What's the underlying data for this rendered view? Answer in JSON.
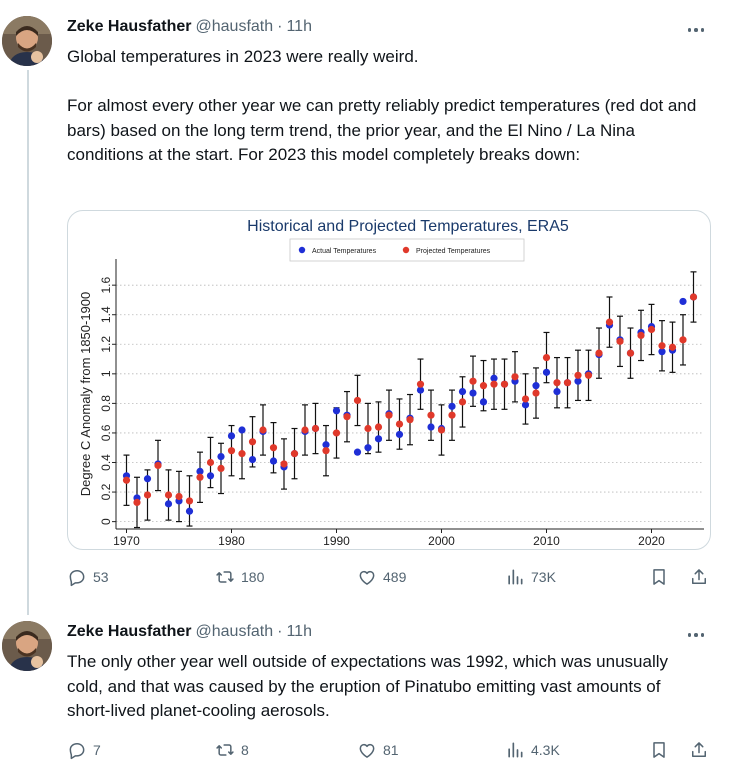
{
  "tweets": [
    {
      "author_name": "Zeke Hausfather",
      "handle": "@hausfath",
      "separator": "·",
      "time": "11h",
      "text": "Global temperatures in 2023 were really weird.\n\nFor almost every other year we can pretty reliably predict temperatures (red dot and bars) based on the long term trend, the prior year, and the El Nino / La Nina conditions at the start. For 2023 this model completely breaks down:",
      "stats": {
        "replies": "53",
        "reposts": "180",
        "likes": "489",
        "views": "73K"
      }
    },
    {
      "author_name": "Zeke Hausfather",
      "handle": "@hausfath",
      "separator": "·",
      "time": "11h",
      "text": "The only other year well outside of expectations was 1992, which was unusually cold, and that was caused by the eruption of Pinatubo emitting vast amounts of short-lived planet-cooling aerosols.",
      "stats": {
        "replies": "7",
        "reposts": "8",
        "likes": "81",
        "views": "4.3K"
      }
    }
  ],
  "icons": [
    "more-icon",
    "reply-icon",
    "repost-icon",
    "like-icon",
    "views-icon",
    "bookmark-icon",
    "share-icon"
  ],
  "colors": {
    "actual": "#1f2fd6",
    "projected": "#e0392b",
    "text": "#0f1419",
    "muted": "#536471",
    "border": "#cfd9de"
  },
  "chart_data": {
    "type": "scatter",
    "title": "Historical and Projected Temperatures, ERA5",
    "ylabel": "Degree C Anomaly from 1850-1900",
    "xlabel": "",
    "legend_position": "top-center",
    "grid": "horizontal dotted",
    "xlim": [
      1969,
      2025
    ],
    "ylim": [
      -0.05,
      1.75
    ],
    "xticks": [
      "1970",
      "1980",
      "1990",
      "2000",
      "2010",
      "2020"
    ],
    "yticks": [
      "0",
      "0.2",
      "0.4",
      "0.6",
      "0.8",
      "1",
      "1.2",
      "1.4",
      "1.6"
    ],
    "series": [
      {
        "name": "Actual Temperatures",
        "color": "#1f2fd6",
        "x": [
          1970,
          1971,
          1972,
          1973,
          1974,
          1975,
          1976,
          1977,
          1978,
          1979,
          1980,
          1981,
          1982,
          1983,
          1984,
          1985,
          1986,
          1987,
          1988,
          1989,
          1990,
          1991,
          1992,
          1993,
          1994,
          1995,
          1996,
          1997,
          1998,
          1999,
          2000,
          2001,
          2002,
          2003,
          2004,
          2005,
          2006,
          2007,
          2008,
          2009,
          2010,
          2011,
          2012,
          2013,
          2014,
          2015,
          2016,
          2017,
          2018,
          2019,
          2020,
          2021,
          2022,
          2023,
          2024
        ],
        "values": [
          0.31,
          0.16,
          0.29,
          0.39,
          0.12,
          0.14,
          0.07,
          0.34,
          0.31,
          0.44,
          0.58,
          0.62,
          0.42,
          0.61,
          0.41,
          0.37,
          0.46,
          0.61,
          0.63,
          0.52,
          0.75,
          0.72,
          0.47,
          0.5,
          0.56,
          0.73,
          0.59,
          0.7,
          0.89,
          0.64,
          0.63,
          0.78,
          0.88,
          0.87,
          0.81,
          0.97,
          0.93,
          0.95,
          0.79,
          0.92,
          1.01,
          0.88,
          0.94,
          0.95,
          1.0,
          1.13,
          1.33,
          1.23,
          1.14,
          1.28,
          1.32,
          1.15,
          1.16,
          1.49,
          1.52
        ]
      },
      {
        "name": "Projected Temperatures",
        "color": "#e0392b",
        "x": [
          1970,
          1971,
          1972,
          1973,
          1974,
          1975,
          1976,
          1977,
          1978,
          1979,
          1980,
          1981,
          1982,
          1983,
          1984,
          1985,
          1986,
          1987,
          1988,
          1989,
          1990,
          1991,
          1992,
          1993,
          1994,
          1995,
          1996,
          1997,
          1998,
          1999,
          2000,
          2001,
          2002,
          2003,
          2004,
          2005,
          2006,
          2007,
          2008,
          2009,
          2010,
          2011,
          2012,
          2013,
          2014,
          2015,
          2016,
          2017,
          2018,
          2019,
          2020,
          2021,
          2022,
          2023,
          2024
        ],
        "values": [
          0.28,
          0.13,
          0.18,
          0.38,
          0.18,
          0.17,
          0.14,
          0.3,
          0.4,
          0.36,
          0.48,
          0.46,
          0.54,
          0.62,
          0.5,
          0.39,
          0.46,
          0.62,
          0.63,
          0.48,
          0.6,
          0.71,
          0.82,
          0.63,
          0.64,
          0.72,
          0.66,
          0.69,
          0.93,
          0.72,
          0.62,
          0.72,
          0.81,
          0.95,
          0.92,
          0.93,
          0.93,
          0.98,
          0.83,
          0.87,
          1.11,
          0.94,
          0.94,
          0.99,
          0.99,
          1.14,
          1.35,
          1.22,
          1.14,
          1.26,
          1.3,
          1.19,
          1.18,
          1.23,
          1.52
        ],
        "error_bars": "±0.17"
      }
    ]
  }
}
